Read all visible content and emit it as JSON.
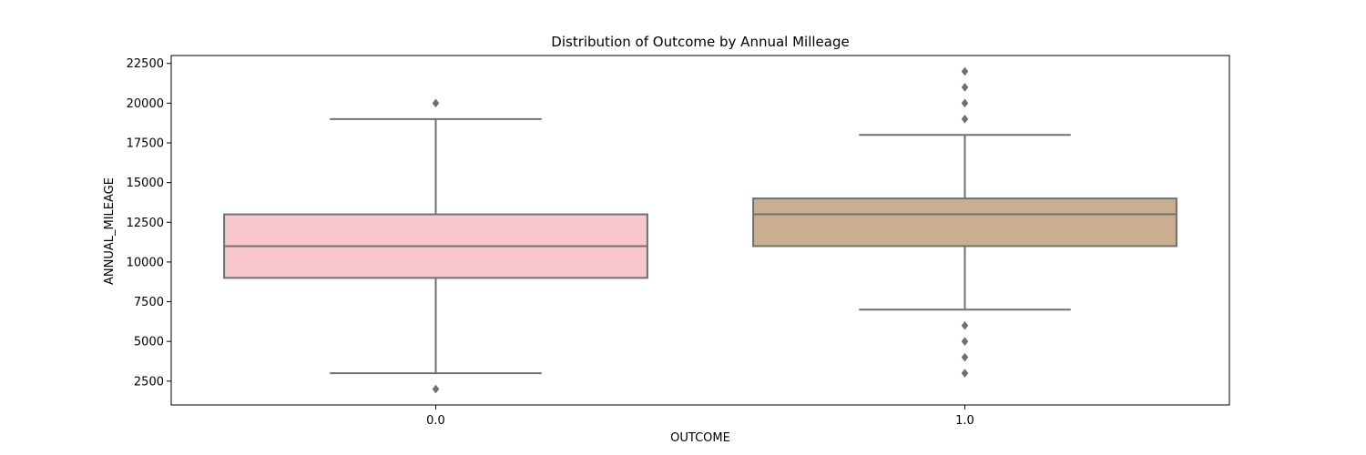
{
  "chart_data": {
    "type": "box",
    "title": "Distribution of Outcome by Annual Milleage",
    "xlabel": "OUTCOME",
    "ylabel": "ANNUAL_MILEAGE",
    "categories": [
      "0.0",
      "1.0"
    ],
    "ylim": [
      1000,
      23000
    ],
    "yticks": [
      2500,
      5000,
      7500,
      10000,
      12500,
      15000,
      17500,
      20000,
      22500
    ],
    "ytick_labels": [
      "2500",
      "5000",
      "7500",
      "10000",
      "12500",
      "15000",
      "17500",
      "20000",
      "22500"
    ],
    "grid": false,
    "legend": "none",
    "line_color": "#707070",
    "boxes": [
      {
        "category": "0.0",
        "whisker_low": 3000,
        "q1": 9000,
        "median": 11000,
        "q3": 13000,
        "whisker_high": 19000,
        "outliers": [
          2000,
          20000
        ],
        "color": "#f7c6cf"
      },
      {
        "category": "1.0",
        "whisker_low": 7000,
        "q1": 11000,
        "median": 13000,
        "q3": 14000,
        "whisker_high": 18000,
        "outliers": [
          3000,
          4000,
          5000,
          6000,
          19000,
          20000,
          21000,
          22000
        ],
        "color": "#c9af90"
      }
    ]
  }
}
